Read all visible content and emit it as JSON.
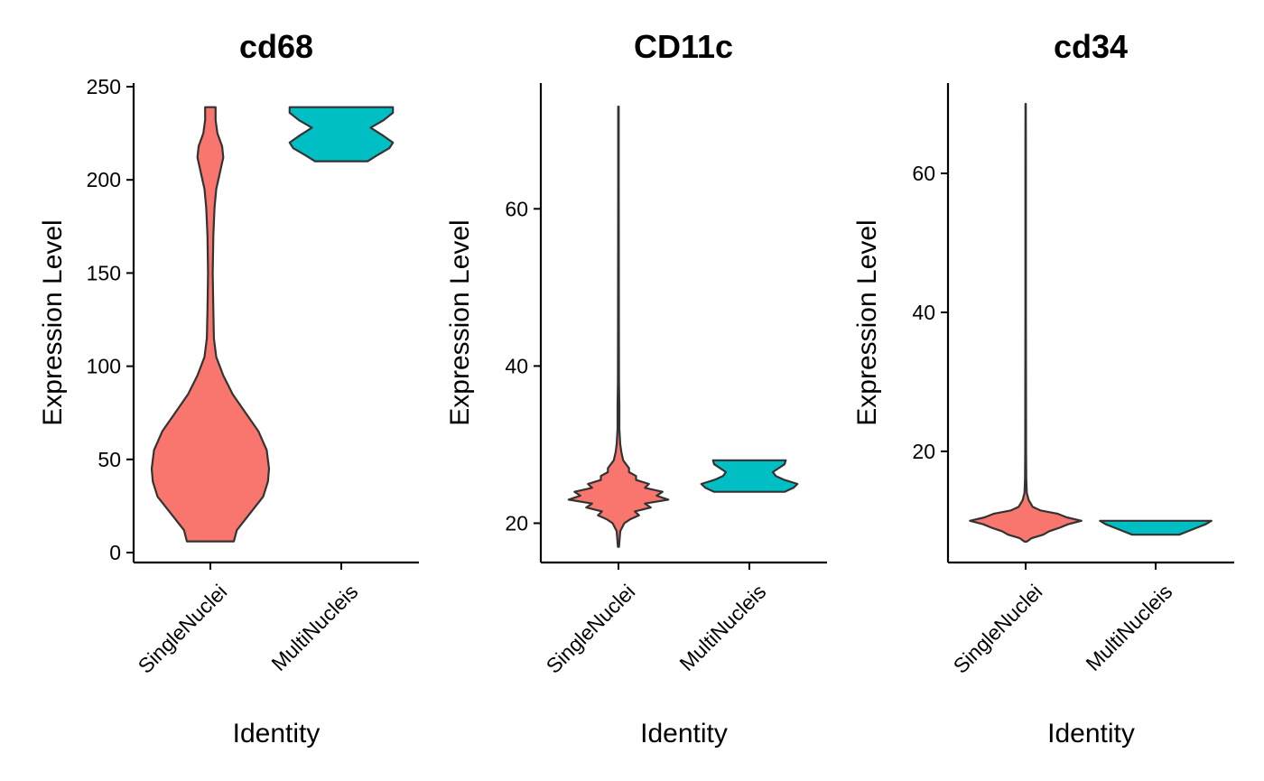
{
  "chart_data": [
    {
      "type": "violin",
      "title": "cd68",
      "xlabel": "Identity",
      "ylabel": "Expression Level",
      "categories": [
        "SingleNuclei",
        "MultiNucleis"
      ],
      "ylim": [
        0,
        250
      ],
      "yticks": [
        0,
        50,
        100,
        150,
        200,
        250
      ],
      "series": [
        {
          "name": "SingleNuclei",
          "color": "#F8766D",
          "density": [
            [
              6,
              0.4
            ],
            [
              12,
              0.45
            ],
            [
              20,
              0.65
            ],
            [
              30,
              0.9
            ],
            [
              38,
              0.98
            ],
            [
              45,
              1.0
            ],
            [
              55,
              0.96
            ],
            [
              65,
              0.82
            ],
            [
              75,
              0.6
            ],
            [
              85,
              0.38
            ],
            [
              95,
              0.22
            ],
            [
              105,
              0.1
            ],
            [
              115,
              0.06
            ],
            [
              130,
              0.05
            ],
            [
              150,
              0.04
            ],
            [
              170,
              0.05
            ],
            [
              185,
              0.07
            ],
            [
              195,
              0.1
            ],
            [
              205,
              0.17
            ],
            [
              212,
              0.22
            ],
            [
              218,
              0.2
            ],
            [
              225,
              0.12
            ],
            [
              232,
              0.09
            ],
            [
              239,
              0.09
            ]
          ]
        },
        {
          "name": "MultiNucleis",
          "color": "#00BFC4",
          "density": [
            [
              210,
              0.45
            ],
            [
              213,
              0.6
            ],
            [
              217,
              0.82
            ],
            [
              220,
              0.88
            ],
            [
              224,
              0.7
            ],
            [
              228,
              0.5
            ],
            [
              232,
              0.72
            ],
            [
              236,
              0.88
            ],
            [
              239,
              0.88
            ]
          ]
        }
      ]
    },
    {
      "type": "violin",
      "title": "CD11c",
      "xlabel": "Identity",
      "ylabel": "Expression Level",
      "categories": [
        "SingleNuclei",
        "MultiNucleis"
      ],
      "ylim": [
        15,
        76
      ],
      "yticks": [
        20,
        40,
        60
      ],
      "series": [
        {
          "name": "SingleNuclei",
          "color": "#F8766D",
          "density": [
            [
              17,
              0.01
            ],
            [
              19,
              0.03
            ],
            [
              20,
              0.1
            ],
            [
              20.5,
              0.2
            ],
            [
              21,
              0.35
            ],
            [
              21.5,
              0.28
            ],
            [
              22,
              0.55
            ],
            [
              22.5,
              0.45
            ],
            [
              23,
              0.85
            ],
            [
              23.5,
              0.65
            ],
            [
              24,
              0.75
            ],
            [
              24.5,
              0.45
            ],
            [
              25,
              0.52
            ],
            [
              25.5,
              0.3
            ],
            [
              26,
              0.3
            ],
            [
              26.5,
              0.18
            ],
            [
              27,
              0.18
            ],
            [
              28,
              0.08
            ],
            [
              29,
              0.05
            ],
            [
              30,
              0.03
            ],
            [
              32,
              0.015
            ],
            [
              35,
              0.015
            ],
            [
              38,
              0.01
            ],
            [
              45,
              0.008
            ],
            [
              55,
              0.006
            ],
            [
              65,
              0.005
            ],
            [
              73,
              0.004
            ]
          ]
        },
        {
          "name": "MultiNucleis",
          "color": "#00BFC4",
          "density": [
            [
              24,
              0.6
            ],
            [
              24.5,
              0.75
            ],
            [
              25,
              0.82
            ],
            [
              25.5,
              0.6
            ],
            [
              26,
              0.45
            ],
            [
              26.5,
              0.4
            ],
            [
              27,
              0.5
            ],
            [
              27.5,
              0.6
            ],
            [
              28,
              0.62
            ]
          ]
        }
      ]
    },
    {
      "type": "violin",
      "title": "cd34",
      "xlabel": "Identity",
      "ylabel": "Expression Level",
      "categories": [
        "SingleNuclei",
        "MultiNucleis"
      ],
      "ylim": [
        4,
        73
      ],
      "yticks": [
        20,
        40,
        60
      ],
      "series": [
        {
          "name": "SingleNuclei",
          "color": "#F8766D",
          "density": [
            [
              7,
              0.02
            ],
            [
              7.5,
              0.1
            ],
            [
              8,
              0.3
            ],
            [
              8.5,
              0.4
            ],
            [
              9,
              0.58
            ],
            [
              9.5,
              0.72
            ],
            [
              10,
              0.95
            ],
            [
              10.5,
              0.7
            ],
            [
              11,
              0.55
            ],
            [
              11.5,
              0.25
            ],
            [
              12,
              0.12
            ],
            [
              13,
              0.05
            ],
            [
              14,
              0.02
            ],
            [
              16,
              0.01
            ],
            [
              20,
              0.008
            ],
            [
              30,
              0.006
            ],
            [
              40,
              0.005
            ],
            [
              50,
              0.004
            ],
            [
              60,
              0.004
            ],
            [
              70,
              0.003
            ]
          ]
        },
        {
          "name": "MultiNucleis",
          "color": "#00BFC4",
          "density": [
            [
              8,
              0.4
            ],
            [
              8.5,
              0.55
            ],
            [
              9,
              0.7
            ],
            [
              9.5,
              0.85
            ],
            [
              10,
              0.95
            ]
          ]
        }
      ]
    }
  ]
}
